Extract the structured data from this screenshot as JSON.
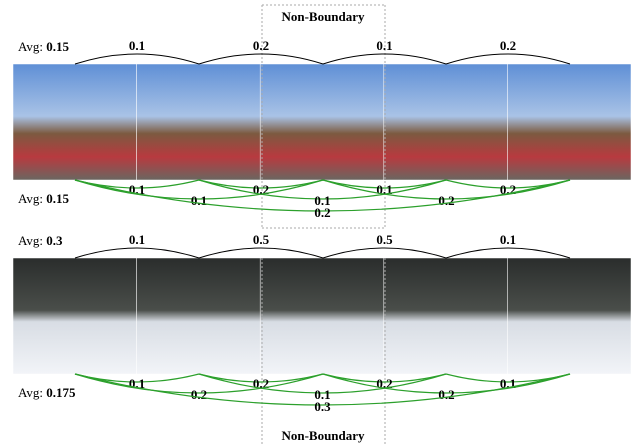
{
  "labels": {
    "top": "Non-Boundary",
    "bottom": "Non-Boundary"
  },
  "rows": [
    {
      "avg_top": {
        "label": "Avg:",
        "value": "0.15"
      },
      "top_arcs": [
        "0.1",
        "0.2",
        "0.1",
        "0.2"
      ],
      "avg_bottom": {
        "label": "Avg:",
        "value": "0.15"
      },
      "bottom_arcs": [
        [
          "0.1",
          "0.2",
          "0.1",
          "0.2"
        ],
        [
          "0.1",
          "0.1",
          "0.2"
        ],
        [
          "0.2"
        ]
      ]
    },
    {
      "avg_top": {
        "label": "Avg:",
        "value": "0.3"
      },
      "top_arcs": [
        "0.1",
        "0.5",
        "0.5",
        "0.1"
      ],
      "avg_bottom": {
        "label": "Avg:",
        "value": "0.175"
      },
      "bottom_arcs": [
        [
          "0.1",
          "0.2",
          "0.2",
          "0.1"
        ],
        [
          "0.2",
          "0.1",
          "0.2"
        ],
        [
          "0.3"
        ]
      ]
    }
  ]
}
